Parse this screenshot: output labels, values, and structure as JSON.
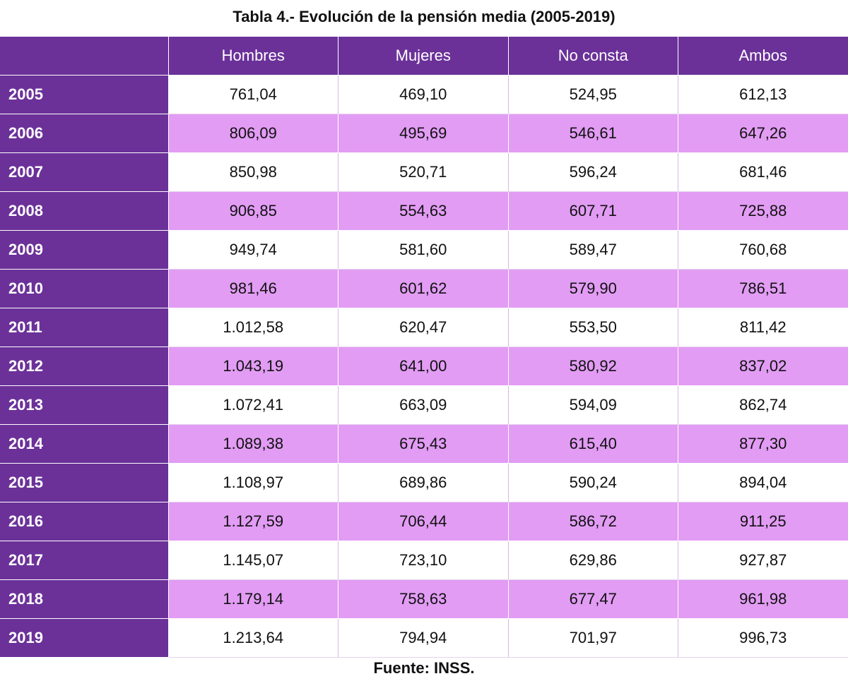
{
  "title": "Tabla 4.- Evolución de la pensión media (2005-2019)",
  "table": {
    "headers": [
      "",
      "Hombres",
      "Mujeres",
      "No consta",
      "Ambos"
    ],
    "rows": [
      {
        "year": "2005",
        "values": [
          "761,04",
          "469,10",
          "524,95",
          "612,13"
        ]
      },
      {
        "year": "2006",
        "values": [
          "806,09",
          "495,69",
          "546,61",
          "647,26"
        ]
      },
      {
        "year": "2007",
        "values": [
          "850,98",
          "520,71",
          "596,24",
          "681,46"
        ]
      },
      {
        "year": "2008",
        "values": [
          "906,85",
          "554,63",
          "607,71",
          "725,88"
        ]
      },
      {
        "year": "2009",
        "values": [
          "949,74",
          "581,60",
          "589,47",
          "760,68"
        ]
      },
      {
        "year": "2010",
        "values": [
          "981,46",
          "601,62",
          "579,90",
          "786,51"
        ]
      },
      {
        "year": "2011",
        "values": [
          "1.012,58",
          "620,47",
          "553,50",
          "811,42"
        ]
      },
      {
        "year": "2012",
        "values": [
          "1.043,19",
          "641,00",
          "580,92",
          "837,02"
        ]
      },
      {
        "year": "2013",
        "values": [
          "1.072,41",
          "663,09",
          "594,09",
          "862,74"
        ]
      },
      {
        "year": "2014",
        "values": [
          "1.089,38",
          "675,43",
          "615,40",
          "877,30"
        ]
      },
      {
        "year": "2015",
        "values": [
          "1.108,97",
          "689,86",
          "590,24",
          "894,04"
        ]
      },
      {
        "year": "2016",
        "values": [
          "1.127,59",
          "706,44",
          "586,72",
          "911,25"
        ]
      },
      {
        "year": "2017",
        "values": [
          "1.145,07",
          "723,10",
          "629,86",
          "927,87"
        ]
      },
      {
        "year": "2018",
        "values": [
          "1.179,14",
          "758,63",
          "677,47",
          "961,98"
        ]
      },
      {
        "year": "2019",
        "values": [
          "1.213,64",
          "794,94",
          "701,97",
          "996,73"
        ]
      }
    ]
  },
  "source": "Fuente: INSS.",
  "colors": {
    "header_purple": "#6b3199",
    "stripe_pink": "#e29cf4",
    "row_white": "#ffffff"
  }
}
